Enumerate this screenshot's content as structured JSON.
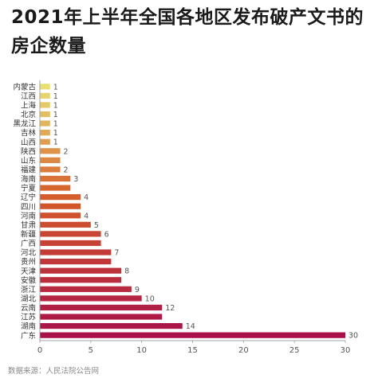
{
  "title": "2021年上半年全国各地区发布破产文书的房企数量",
  "source": "数据来源：人民法院公告网",
  "chart_data": {
    "type": "bar",
    "orientation": "horizontal",
    "title": "2021年上半年全国各地区发布破产文书的房企数量",
    "categories": [
      "内蒙古",
      "江西",
      "上海",
      "北京",
      "黑龙江",
      "吉林",
      "山西",
      "陕西",
      "山东",
      "福建",
      "海南",
      "宁夏",
      "辽宁",
      "四川",
      "河南",
      "甘肃",
      "新疆",
      "广西",
      "河北",
      "贵州",
      "天津",
      "安徽",
      "浙江",
      "湖北",
      "云南",
      "江苏",
      "湖南",
      "广东"
    ],
    "values": [
      1,
      1,
      1,
      1,
      1,
      1,
      1,
      2,
      2,
      2,
      3,
      3,
      4,
      4,
      4,
      5,
      6,
      6,
      7,
      7,
      8,
      8,
      9,
      10,
      12,
      12,
      14,
      30
    ],
    "value_labels": [
      1,
      1,
      1,
      1,
      1,
      1,
      1,
      2,
      null,
      2,
      3,
      null,
      4,
      null,
      4,
      5,
      6,
      null,
      7,
      null,
      8,
      null,
      9,
      10,
      12,
      null,
      14,
      30
    ],
    "xlim": [
      0,
      30
    ],
    "xticks": [
      0,
      5,
      10,
      15,
      20,
      25,
      30
    ],
    "grid": false,
    "colors": {
      "low": "#e8e073",
      "mid": "#d55a2a",
      "high": "#a8114a"
    }
  }
}
